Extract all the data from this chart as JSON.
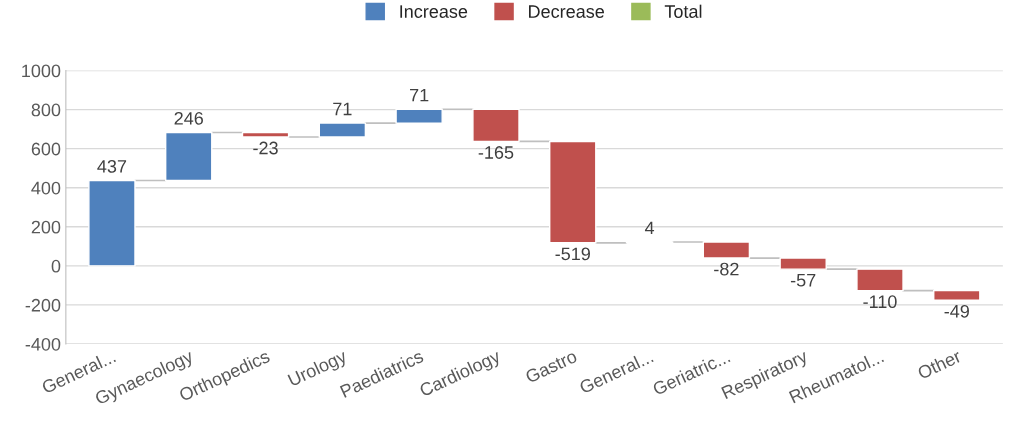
{
  "chart_data": {
    "type": "bar",
    "categories": [
      "General...",
      "Gynaecology",
      "Orthopedics",
      "Urology",
      "Paediatrics",
      "Cardiology",
      "Gastro",
      "General...",
      "Geriatric...",
      "Respiratory",
      "Rheumatol...",
      "Other"
    ],
    "series": [
      {
        "name": "Increase",
        "color": "#4f81bd",
        "values": [
          437,
          246,
          null,
          71,
          71,
          null,
          null,
          4,
          null,
          null,
          null,
          null
        ],
        "base": [
          0,
          437,
          null,
          660,
          731,
          null,
          null,
          118,
          null,
          null,
          null,
          null
        ]
      },
      {
        "name": "Decrease",
        "color": "#c0504d",
        "values": [
          null,
          null,
          -23,
          null,
          null,
          -165,
          -519,
          null,
          -82,
          -57,
          -110,
          -49
        ],
        "base": [
          null,
          null,
          683,
          null,
          null,
          802,
          637,
          null,
          122,
          40,
          -17,
          -127
        ]
      },
      {
        "name": "Total",
        "color": "#9bbb59",
        "values": [
          null,
          null,
          null,
          null,
          null,
          null,
          null,
          null,
          null,
          null,
          null,
          null
        ]
      }
    ],
    "ylim": [
      -400,
      1000
    ],
    "yticks": [
      -400,
      -200,
      0,
      200,
      400,
      600,
      800,
      1000
    ],
    "grid": "y",
    "legend": "top",
    "data_labels": true
  }
}
